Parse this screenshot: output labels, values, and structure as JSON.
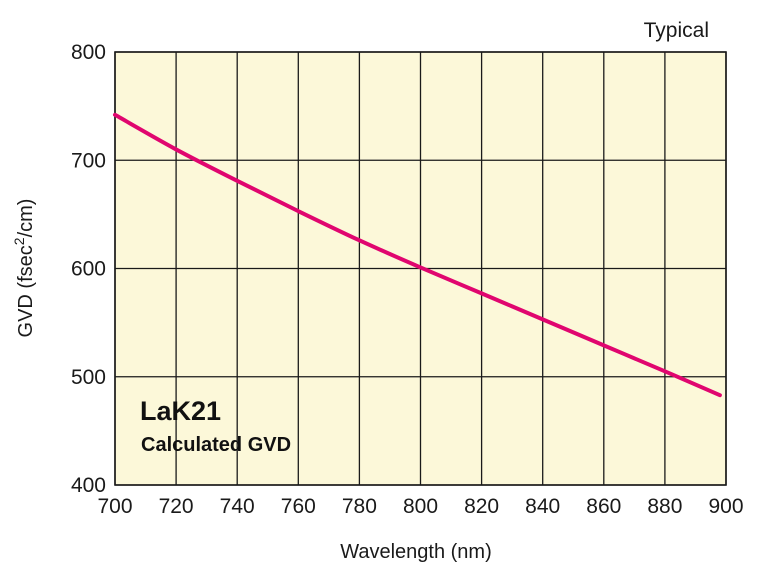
{
  "chart_data": {
    "type": "line",
    "title": "",
    "corner_note": "Typical",
    "annotation": {
      "title": "LaK21",
      "subtitle": "Calculated GVD"
    },
    "xlabel": "Wavelength (nm)",
    "ylabel": {
      "prefix": "GVD (fsec",
      "superscript": "2",
      "suffix": "/cm)"
    },
    "xlim": [
      700,
      900
    ],
    "ylim": [
      400,
      800
    ],
    "xticks": [
      700,
      720,
      740,
      760,
      780,
      800,
      820,
      840,
      860,
      880,
      900
    ],
    "yticks": [
      400,
      500,
      600,
      700,
      800
    ],
    "grid": true,
    "series": [
      {
        "name": "LaK21 Calculated GVD",
        "x": [
          700,
          720,
          740,
          760,
          780,
          800,
          820,
          840,
          860,
          880,
          898
        ],
        "y": [
          742,
          710,
          681,
          653,
          626,
          601,
          577,
          553,
          529,
          505,
          483
        ]
      }
    ]
  },
  "colors": {
    "plot_background": "#fcf8d9",
    "line": "#e0066f",
    "grid": "#1a1a1a",
    "text": "#1a1a1a"
  }
}
